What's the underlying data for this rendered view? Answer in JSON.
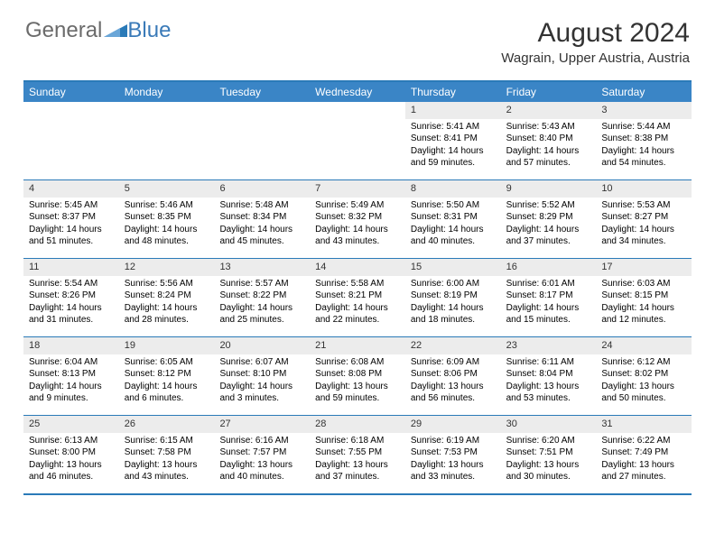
{
  "logo": {
    "part1": "General",
    "part2": "Blue"
  },
  "title": "August 2024",
  "location": "Wagrain, Upper Austria, Austria",
  "colors": {
    "header_bg": "#3a85c6",
    "border": "#2a7ab8",
    "daynum_bg": "#ececec",
    "text": "#000000",
    "logo_gray": "#6b6b6b",
    "logo_blue": "#3a7ab8"
  },
  "day_labels": [
    "Sunday",
    "Monday",
    "Tuesday",
    "Wednesday",
    "Thursday",
    "Friday",
    "Saturday"
  ],
  "weeks": [
    [
      {
        "empty": true
      },
      {
        "empty": true
      },
      {
        "empty": true
      },
      {
        "empty": true
      },
      {
        "n": "1",
        "sr": "5:41 AM",
        "ss": "8:41 PM",
        "dh": "14",
        "dm": "59"
      },
      {
        "n": "2",
        "sr": "5:43 AM",
        "ss": "8:40 PM",
        "dh": "14",
        "dm": "57"
      },
      {
        "n": "3",
        "sr": "5:44 AM",
        "ss": "8:38 PM",
        "dh": "14",
        "dm": "54"
      }
    ],
    [
      {
        "n": "4",
        "sr": "5:45 AM",
        "ss": "8:37 PM",
        "dh": "14",
        "dm": "51"
      },
      {
        "n": "5",
        "sr": "5:46 AM",
        "ss": "8:35 PM",
        "dh": "14",
        "dm": "48"
      },
      {
        "n": "6",
        "sr": "5:48 AM",
        "ss": "8:34 PM",
        "dh": "14",
        "dm": "45"
      },
      {
        "n": "7",
        "sr": "5:49 AM",
        "ss": "8:32 PM",
        "dh": "14",
        "dm": "43"
      },
      {
        "n": "8",
        "sr": "5:50 AM",
        "ss": "8:31 PM",
        "dh": "14",
        "dm": "40"
      },
      {
        "n": "9",
        "sr": "5:52 AM",
        "ss": "8:29 PM",
        "dh": "14",
        "dm": "37"
      },
      {
        "n": "10",
        "sr": "5:53 AM",
        "ss": "8:27 PM",
        "dh": "14",
        "dm": "34"
      }
    ],
    [
      {
        "n": "11",
        "sr": "5:54 AM",
        "ss": "8:26 PM",
        "dh": "14",
        "dm": "31"
      },
      {
        "n": "12",
        "sr": "5:56 AM",
        "ss": "8:24 PM",
        "dh": "14",
        "dm": "28"
      },
      {
        "n": "13",
        "sr": "5:57 AM",
        "ss": "8:22 PM",
        "dh": "14",
        "dm": "25"
      },
      {
        "n": "14",
        "sr": "5:58 AM",
        "ss": "8:21 PM",
        "dh": "14",
        "dm": "22"
      },
      {
        "n": "15",
        "sr": "6:00 AM",
        "ss": "8:19 PM",
        "dh": "14",
        "dm": "18"
      },
      {
        "n": "16",
        "sr": "6:01 AM",
        "ss": "8:17 PM",
        "dh": "14",
        "dm": "15"
      },
      {
        "n": "17",
        "sr": "6:03 AM",
        "ss": "8:15 PM",
        "dh": "14",
        "dm": "12"
      }
    ],
    [
      {
        "n": "18",
        "sr": "6:04 AM",
        "ss": "8:13 PM",
        "dh": "14",
        "dm": "9"
      },
      {
        "n": "19",
        "sr": "6:05 AM",
        "ss": "8:12 PM",
        "dh": "14",
        "dm": "6"
      },
      {
        "n": "20",
        "sr": "6:07 AM",
        "ss": "8:10 PM",
        "dh": "14",
        "dm": "3"
      },
      {
        "n": "21",
        "sr": "6:08 AM",
        "ss": "8:08 PM",
        "dh": "13",
        "dm": "59"
      },
      {
        "n": "22",
        "sr": "6:09 AM",
        "ss": "8:06 PM",
        "dh": "13",
        "dm": "56"
      },
      {
        "n": "23",
        "sr": "6:11 AM",
        "ss": "8:04 PM",
        "dh": "13",
        "dm": "53"
      },
      {
        "n": "24",
        "sr": "6:12 AM",
        "ss": "8:02 PM",
        "dh": "13",
        "dm": "50"
      }
    ],
    [
      {
        "n": "25",
        "sr": "6:13 AM",
        "ss": "8:00 PM",
        "dh": "13",
        "dm": "46"
      },
      {
        "n": "26",
        "sr": "6:15 AM",
        "ss": "7:58 PM",
        "dh": "13",
        "dm": "43"
      },
      {
        "n": "27",
        "sr": "6:16 AM",
        "ss": "7:57 PM",
        "dh": "13",
        "dm": "40"
      },
      {
        "n": "28",
        "sr": "6:18 AM",
        "ss": "7:55 PM",
        "dh": "13",
        "dm": "37"
      },
      {
        "n": "29",
        "sr": "6:19 AM",
        "ss": "7:53 PM",
        "dh": "13",
        "dm": "33"
      },
      {
        "n": "30",
        "sr": "6:20 AM",
        "ss": "7:51 PM",
        "dh": "13",
        "dm": "30"
      },
      {
        "n": "31",
        "sr": "6:22 AM",
        "ss": "7:49 PM",
        "dh": "13",
        "dm": "27"
      }
    ]
  ]
}
